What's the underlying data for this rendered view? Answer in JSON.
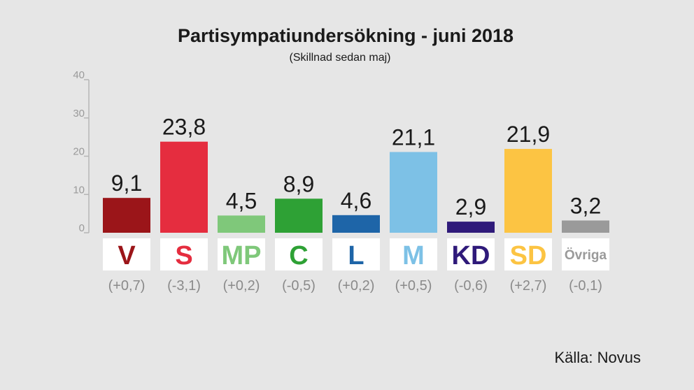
{
  "title": "Partisympatiundersökning - juni 2018",
  "subtitle": "(Skillnad sedan maj)",
  "source": "Källa: Novus",
  "chart_data": {
    "type": "bar",
    "title": "Partisympatiundersökning - juni 2018",
    "subtitle": "(Skillnad sedan maj)",
    "ylim": [
      0,
      40
    ],
    "yticks": [
      0,
      10,
      20,
      30,
      40
    ],
    "grid": false,
    "categories": [
      "V",
      "S",
      "MP",
      "C",
      "L",
      "M",
      "KD",
      "SD",
      "Övriga"
    ],
    "values": [
      9.1,
      23.8,
      4.5,
      8.9,
      4.6,
      21.1,
      2.9,
      21.9,
      3.2
    ],
    "value_labels": [
      "9,1",
      "23,8",
      "4,5",
      "8,9",
      "4,6",
      "21,1",
      "2,9",
      "21,9",
      "3,2"
    ],
    "changes_since_may": [
      "(+0,7)",
      "(-3,1)",
      "(+0,2)",
      "(-0,5)",
      "(+0,2)",
      "(+0,5)",
      "(-0,6)",
      "(+2,7)",
      "(-0,1)"
    ],
    "colors": [
      "#9b1519",
      "#e52d3f",
      "#7fc87a",
      "#2ea135",
      "#1e65a8",
      "#7dc1e6",
      "#2f1a7a",
      "#fcc443",
      "#9a9a9a"
    ]
  }
}
